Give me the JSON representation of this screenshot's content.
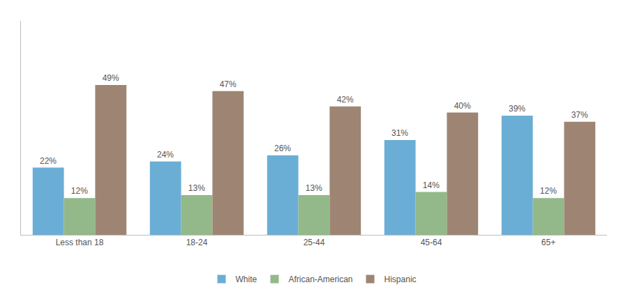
{
  "chart_data": {
    "type": "bar",
    "categories": [
      "Less than 18",
      "18-24",
      "25-44",
      "45-64",
      "65+"
    ],
    "series": [
      {
        "name": "White",
        "color": "#6aaed6",
        "values": [
          22,
          24,
          26,
          31,
          39
        ],
        "value_labels": [
          "22%",
          "24%",
          "26%",
          "31%",
          "39%"
        ]
      },
      {
        "name": "African-American",
        "color": "#93b98a",
        "values": [
          12,
          13,
          13,
          14,
          12
        ],
        "value_labels": [
          "12%",
          "13%",
          "13%",
          "14%",
          "12%"
        ]
      },
      {
        "name": "Hispanic",
        "color": "#9e8573",
        "values": [
          49,
          47,
          42,
          40,
          37
        ],
        "value_labels": [
          "49%",
          "47%",
          "42%",
          "40%",
          "37%"
        ]
      }
    ],
    "ylim": [
      0,
      70
    ],
    "yticks": [],
    "grid": false,
    "legend": "bottom",
    "data_labels": true,
    "tick_labels": "x"
  }
}
